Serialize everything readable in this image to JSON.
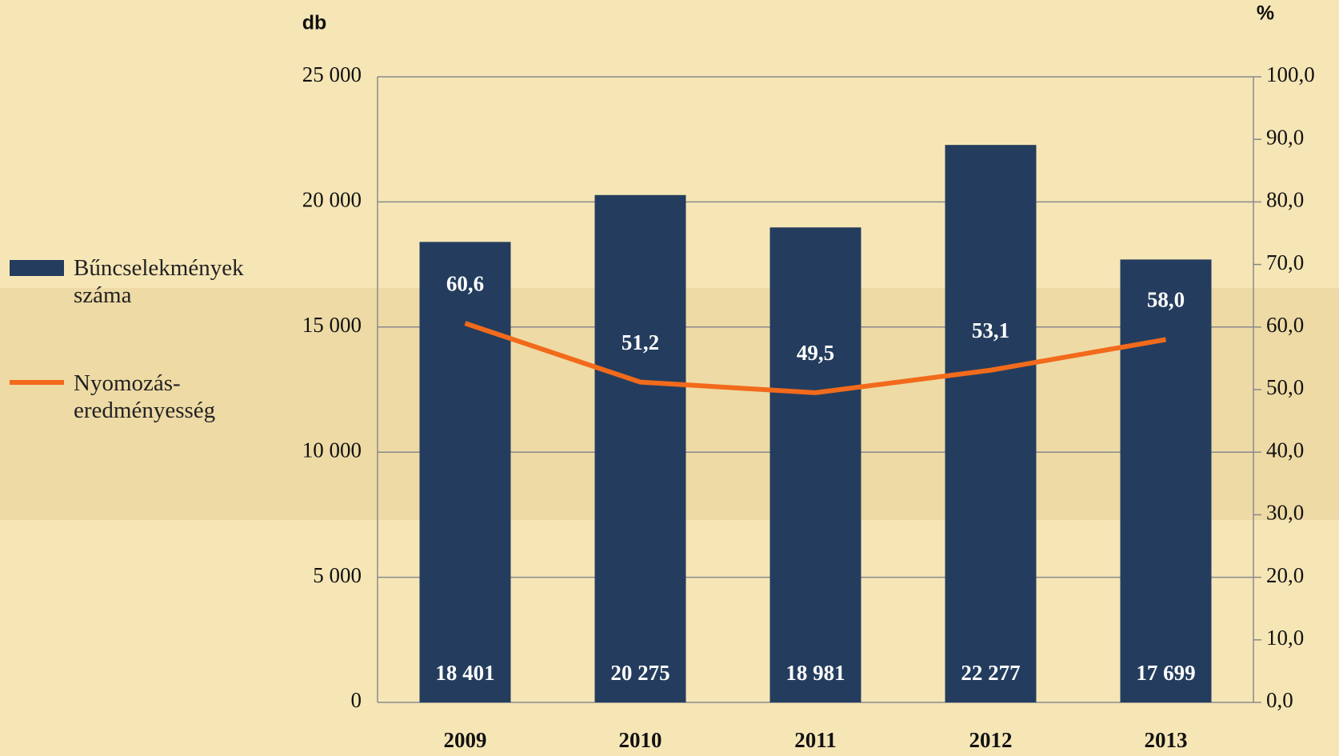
{
  "chart_data": {
    "type": "bar-line",
    "y_label": "db",
    "y2_label": "%",
    "categories": [
      "2009",
      "2010",
      "2011",
      "2012",
      "2013"
    ],
    "series": [
      {
        "name": "Bűncselekmények száma",
        "type": "bar",
        "color": "#243d5e",
        "values": [
          18401,
          20275,
          18981,
          22277,
          17699
        ],
        "value_labels": [
          "18 401",
          "20 275",
          "18 981",
          "22 277",
          "17 699"
        ]
      },
      {
        "name": "Nyomozás-eredményesség",
        "type": "line",
        "axis": "y2",
        "color": "#f26a1b",
        "values": [
          60.6,
          51.2,
          49.5,
          53.1,
          58.0
        ],
        "value_labels": [
          "60,6",
          "51,2",
          "49,5",
          "53,1",
          "58,0"
        ]
      }
    ],
    "ylim": [
      0,
      25000
    ],
    "yticks": [
      0,
      {
        "value": 5000,
        "label": "5 000"
      },
      {
        "value": 10000,
        "label": "10 000"
      },
      {
        "value": 15000,
        "label": "15 000"
      },
      {
        "value": 20000,
        "label": "20 000"
      },
      {
        "value": 25000,
        "label": "25 000"
      }
    ],
    "y2lim": [
      0,
      100
    ],
    "y2ticks": [
      {
        "value": 0,
        "label": "0,0"
      },
      {
        "value": 10,
        "label": "10,0"
      },
      {
        "value": 20,
        "label": "20,0"
      },
      {
        "value": 30,
        "label": "30,0"
      },
      {
        "value": 40,
        "label": "40,0"
      },
      {
        "value": 50,
        "label": "50,0"
      },
      {
        "value": 60,
        "label": "60,0"
      },
      {
        "value": 70,
        "label": "70,0"
      },
      {
        "value": 80,
        "label": "80,0"
      },
      {
        "value": 90,
        "label": "90,0"
      },
      {
        "value": 100,
        "label": "100,0"
      }
    ],
    "grid": true,
    "legend": "left"
  }
}
